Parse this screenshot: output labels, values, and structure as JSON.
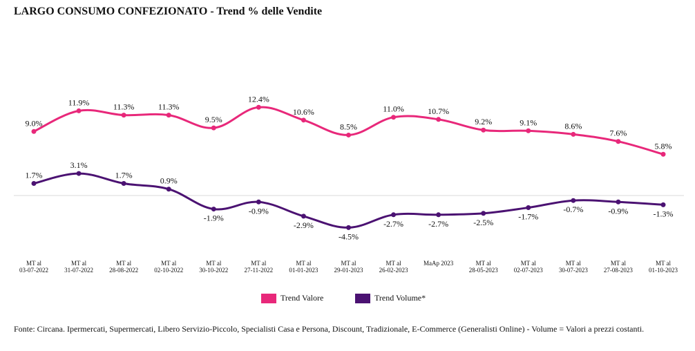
{
  "chart_data": {
    "type": "line",
    "title": "LARGO CONSUMO CONFEZIONATO - Trend % delle Vendite",
    "categories": [
      [
        "MT al",
        "03-07-2022"
      ],
      [
        "MT al",
        "31-07-2022"
      ],
      [
        "MT al",
        "28-08-2022"
      ],
      [
        "MT al",
        "02-10-2022"
      ],
      [
        "MT al",
        "30-10-2022"
      ],
      [
        "MT al",
        "27-11-2022"
      ],
      [
        "MT al",
        "01-01-2023"
      ],
      [
        "MT al",
        "29-01-2023"
      ],
      [
        "MT al",
        "26-02-2023"
      ],
      [
        "MaAp 2023"
      ],
      [
        "MT al",
        "28-05-2023"
      ],
      [
        "MT al",
        "02-07-2023"
      ],
      [
        "MT al",
        "30-07-2023"
      ],
      [
        "MT al",
        "27-08-2023"
      ],
      [
        "MT al",
        "01-10-2023"
      ]
    ],
    "series": [
      {
        "name": "Trend Valore",
        "color": "#e8287a",
        "values": [
          9.0,
          11.9,
          11.3,
          11.3,
          9.5,
          12.4,
          10.6,
          8.5,
          11.0,
          10.7,
          9.2,
          9.1,
          8.6,
          7.6,
          5.8
        ],
        "labels": [
          "9.0%",
          "11.9%",
          "11.3%",
          "11.3%",
          "9.5%",
          "12.4%",
          "10.6%",
          "8.5%",
          "11.0%",
          "10.7%",
          "9.2%",
          "9.1%",
          "8.6%",
          "7.6%",
          "5.8%"
        ]
      },
      {
        "name": "Trend Volume*",
        "color": "#4b1272",
        "values": [
          1.7,
          3.1,
          1.7,
          0.9,
          -1.9,
          -0.9,
          -2.9,
          -4.5,
          -2.7,
          -2.7,
          -2.5,
          -1.7,
          -0.7,
          -0.9,
          -1.3
        ],
        "labels": [
          "1.7%",
          "3.1%",
          "1.7%",
          "0.9%",
          "-1.9%",
          "-0.9%",
          "-2.9%",
          "-4.5%",
          "-2.7%",
          "-2.7%",
          "-2.5%",
          "-1.7%",
          "-0.7%",
          "-0.9%",
          "-1.3%"
        ]
      }
    ],
    "legend_position": "bottom",
    "grid": false,
    "zero_line": true
  },
  "footer": {
    "source": "Fonte: Circana. Ipermercati, Supermercati, Libero Servizio-Piccolo, Specialisti Casa e Persona, Discount, Tradizionale, E-Commerce (Generalisti Online) - Volume = Valori a prezzi costanti."
  }
}
